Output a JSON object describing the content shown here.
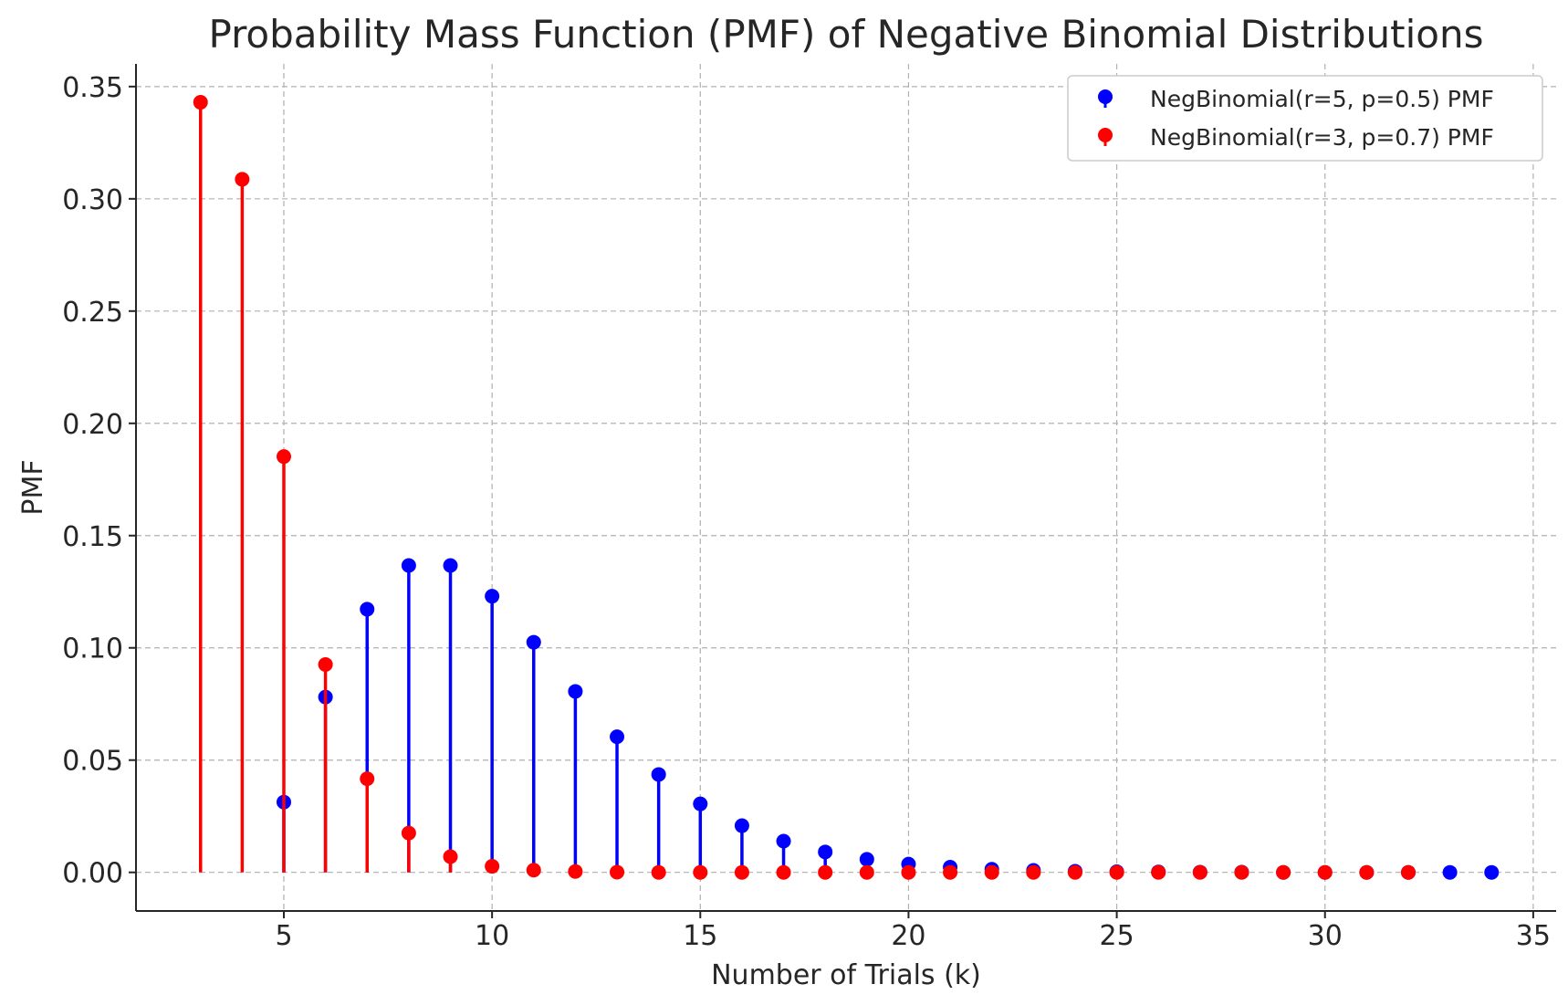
{
  "chart_data": {
    "type": "scatter",
    "style": "stem",
    "title": "Probability Mass Function (PMF) of Negative Binomial Distributions",
    "xlabel": "Number of Trials (k)",
    "ylabel": "PMF",
    "xlim": [
      1.45,
      35.55
    ],
    "ylim": [
      -0.0172,
      0.3601
    ],
    "xticks": [
      5,
      10,
      15,
      20,
      25,
      30,
      35
    ],
    "xtick_labels": [
      "5",
      "10",
      "15",
      "20",
      "25",
      "30",
      "35"
    ],
    "yticks": [
      0.0,
      0.05,
      0.1,
      0.15,
      0.2,
      0.25,
      0.3,
      0.35
    ],
    "ytick_labels": [
      "0.00",
      "0.05",
      "0.10",
      "0.15",
      "0.20",
      "0.25",
      "0.30",
      "0.35"
    ],
    "grid": true,
    "legend_position": "top-right",
    "series": [
      {
        "name": "NegBinomial(r=5, p=0.5) PMF",
        "color": "#0000ff",
        "x": [
          5,
          6,
          7,
          8,
          9,
          10,
          11,
          12,
          13,
          14,
          15,
          16,
          17,
          18,
          19,
          20,
          21,
          22,
          23,
          24,
          25,
          26,
          27,
          28,
          29,
          30,
          31,
          32,
          33,
          34
        ],
        "y": [
          0.0313,
          0.0781,
          0.1172,
          0.1367,
          0.1367,
          0.123,
          0.1025,
          0.0806,
          0.0604,
          0.0436,
          0.0305,
          0.0208,
          0.0139,
          0.0091,
          0.0058,
          0.0037,
          0.0023,
          0.0014,
          0.0009,
          0.0005,
          0.0003,
          0.0002,
          0.0001,
          0.0001,
          0.0,
          0.0,
          0.0,
          0.0,
          0.0,
          0.0
        ]
      },
      {
        "name": "NegBinomial(r=3, p=0.7) PMF",
        "color": "#ff0000",
        "x": [
          3,
          4,
          5,
          6,
          7,
          8,
          9,
          10,
          11,
          12,
          13,
          14,
          15,
          16,
          17,
          18,
          19,
          20,
          21,
          22,
          23,
          24,
          25,
          26,
          27,
          28,
          29,
          30,
          31,
          32
        ],
        "y": [
          0.343,
          0.3087,
          0.1852,
          0.0926,
          0.0417,
          0.0175,
          0.007,
          0.0027,
          0.001,
          0.0004,
          0.0001,
          0.0,
          0.0,
          0.0,
          0.0,
          0.0,
          0.0,
          0.0,
          0.0,
          0.0,
          0.0,
          0.0,
          0.0,
          0.0,
          0.0,
          0.0,
          0.0,
          0.0,
          0.0,
          0.0
        ]
      }
    ]
  }
}
